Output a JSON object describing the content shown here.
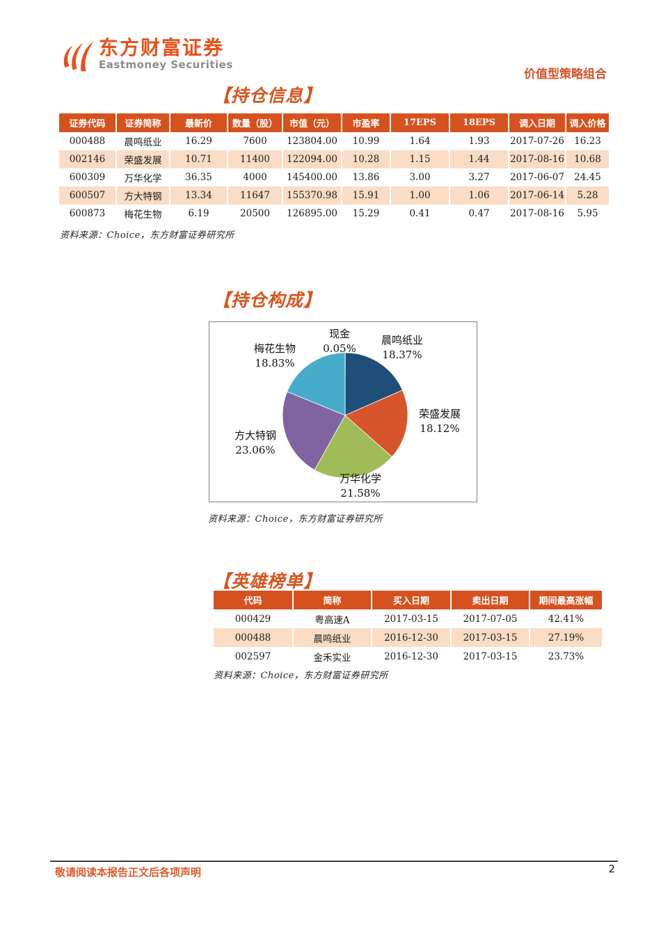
{
  "header": {
    "logo_cn": "东方财富证券",
    "logo_en": "Eastmoney Securities",
    "portfolio_label": "价值型策略组合"
  },
  "sections": {
    "holdings": {
      "title": "【持仓信息】",
      "source": "资料来源：Choice，东方财富证券研究所",
      "table": {
        "headers": [
          "证券代码",
          "证券简称",
          "最新价",
          "数量（股）",
          "市值（元）",
          "市盈率",
          "17EPS",
          "18EPS",
          "调入日期",
          "调入价格"
        ],
        "rows": [
          [
            "000488",
            "晨鸣纸业",
            "16.29",
            "7600",
            "123804.00",
            "10.99",
            "1.64",
            "1.93",
            "2017-07-26",
            "16.23"
          ],
          [
            "002146",
            "荣盛发展",
            "10.71",
            "11400",
            "122094.00",
            "10.28",
            "1.15",
            "1.44",
            "2017-08-16",
            "10.68"
          ],
          [
            "600309",
            "万华化学",
            "36.35",
            "4000",
            "145400.00",
            "13.86",
            "3.00",
            "3.27",
            "2017-06-07",
            "24.45"
          ],
          [
            "600507",
            "方大特钢",
            "13.34",
            "11647",
            "155370.98",
            "15.91",
            "1.00",
            "1.06",
            "2017-06-14",
            "5.28"
          ],
          [
            "600873",
            "梅花生物",
            "6.19",
            "20500",
            "126895.00",
            "15.29",
            "0.41",
            "0.47",
            "2017-08-16",
            "5.95"
          ]
        ]
      }
    },
    "composition": {
      "title": "【持仓构成】",
      "source": "资料来源：Choice，东方财富证券研究所"
    },
    "heroes": {
      "title": "【英雄榜单】",
      "source": "资料来源：Choice，东方财富证券研究所",
      "table": {
        "headers": [
          "代码",
          "简称",
          "买入日期",
          "卖出日期",
          "期间最高涨幅"
        ],
        "rows": [
          [
            "000429",
            "粤高速A",
            "2017-03-15",
            "2017-07-05",
            "42.41%"
          ],
          [
            "000488",
            "晨鸣纸业",
            "2016-12-30",
            "2017-03-15",
            "27.19%"
          ],
          [
            "002597",
            "金禾实业",
            "2016-12-30",
            "2017-03-15",
            "23.73%"
          ]
        ]
      }
    }
  },
  "chart_data": {
    "type": "pie",
    "title": "持仓构成",
    "labels": [
      "现金",
      "晨鸣纸业",
      "荣盛发展",
      "万华化学",
      "方大特钢",
      "梅花生物"
    ],
    "values": [
      0.05,
      18.37,
      18.12,
      21.58,
      23.06,
      18.83
    ],
    "value_labels": [
      "0.05%",
      "18.37%",
      "18.12%",
      "21.58%",
      "23.06%",
      "18.83%"
    ],
    "colors": [
      "#4F81BD",
      "#1F4E79",
      "#D6552A",
      "#9FBC59",
      "#8064A2",
      "#47ACCA"
    ],
    "start_angle_deg": 0,
    "direction": "clockwise",
    "legend_position": "labels-around-pie"
  },
  "footer": {
    "disclaimer": "敬请阅读本报告正文后各项声明",
    "page_number": "2"
  },
  "colors": {
    "brand_orange": "#E8501A",
    "section_title_orange": "#D6541E",
    "table_header_bg": "#D5521F",
    "table_row_alt_bg": "#FBDCC5",
    "logo_en_gray": "#8C8C8C",
    "footer_orange": "#E05A2B"
  }
}
